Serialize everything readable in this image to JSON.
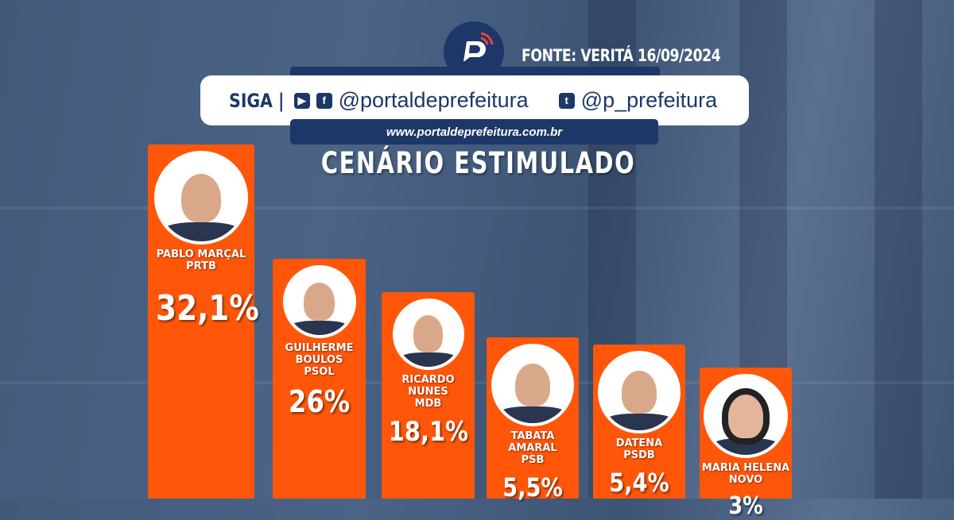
{
  "header": {
    "source": "FONTE: VERITÁ 16/09/2024",
    "follow_label": "SIGA |",
    "handle_main": "@portaldeprefeitura",
    "handle_twitter": "@p_prefeitura",
    "website": "www.portaldeprefeitura.com.br",
    "logo_letter": "P"
  },
  "icons": [
    "youtube-icon",
    "facebook-icon",
    "twitter-icon"
  ],
  "colors": {
    "bar": "#ff560a",
    "brand": "#1c3768"
  },
  "chart_data": {
    "type": "bar",
    "title": "CENÁRIO ESTIMULADO",
    "categories": [
      "PABLO MARÇAL",
      "GUILHERME BOULOS",
      "RICARDO NUNES",
      "TABATA AMARAL",
      "DATENA",
      "MARIA HELENA"
    ],
    "parties": [
      "PRTB",
      "PSOL",
      "MDB",
      "PSB",
      "PSDB",
      "NOVO"
    ],
    "values": [
      32.1,
      26,
      18.1,
      5.5,
      5.4,
      3
    ],
    "labels": [
      "32,1%",
      "26%",
      "18,1%",
      "5,5%",
      "5,4%",
      "3%"
    ],
    "unit": "%"
  }
}
